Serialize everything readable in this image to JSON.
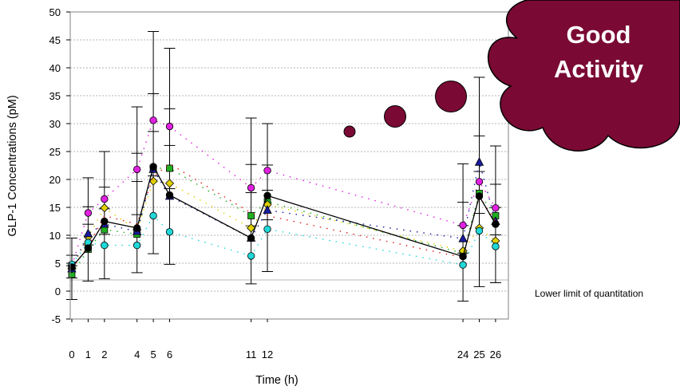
{
  "chart_data": {
    "type": "line",
    "xlabel": "Time (h)",
    "ylabel": "GLP-1 Concentrations (pM)",
    "ylim": [
      -5,
      50
    ],
    "y_ticks": [
      -5,
      0,
      5,
      10,
      15,
      20,
      25,
      30,
      35,
      40,
      45,
      50
    ],
    "x_ticks": [
      0,
      1,
      2,
      4,
      5,
      6,
      11,
      12,
      24,
      25,
      26
    ],
    "grid": "horizontal dotted",
    "reference_line": {
      "label": "Lower limit of quantitation",
      "value": 2
    },
    "callout": {
      "line1": "Good",
      "line2": "Activity",
      "color": "#7a0a34"
    },
    "error_bars": true,
    "series": [
      {
        "color": "#000000",
        "marker": "circle",
        "line": "solid",
        "values": [
          [
            0,
            4.3
          ],
          [
            1,
            7.7
          ],
          [
            2,
            12.5
          ],
          [
            4,
            11.3
          ],
          [
            5,
            22.3
          ],
          [
            6,
            17.2
          ],
          [
            11,
            9.5
          ],
          [
            12,
            17.1
          ],
          [
            24,
            6.2
          ],
          [
            25,
            17
          ],
          [
            26,
            12
          ]
        ]
      },
      {
        "color": "#e020e0",
        "marker": "circle",
        "line": "dotted",
        "values": [
          [
            0,
            4.5
          ],
          [
            1,
            14
          ],
          [
            2,
            16.5
          ],
          [
            4,
            21.8
          ],
          [
            5,
            30.6
          ],
          [
            6,
            29.5
          ],
          [
            11,
            18.5
          ],
          [
            12,
            21.6
          ],
          [
            24,
            11.8
          ],
          [
            25,
            19.6
          ],
          [
            26,
            14.9
          ]
        ]
      },
      {
        "color": "#20b020",
        "marker": "square",
        "line": "dotted",
        "values": [
          [
            0,
            3
          ],
          [
            1,
            7.5
          ],
          [
            2,
            11
          ],
          [
            4,
            10.2
          ],
          [
            5,
            22
          ],
          [
            6,
            22
          ],
          [
            11,
            13.5
          ],
          [
            12,
            16
          ],
          [
            24,
            6.8
          ],
          [
            25,
            17.5
          ],
          [
            26,
            13.5
          ]
        ]
      },
      {
        "color": "#e0d000",
        "marker": "diamond",
        "line": "dotted",
        "values": [
          [
            0,
            4
          ],
          [
            1,
            9.7
          ],
          [
            2,
            14.9
          ],
          [
            4,
            11
          ],
          [
            5,
            19.7
          ],
          [
            6,
            19.3
          ],
          [
            11,
            11.3
          ],
          [
            12,
            15.5
          ],
          [
            24,
            7.2
          ],
          [
            25,
            11.3
          ],
          [
            26,
            9
          ]
        ]
      },
      {
        "color": "#20d8d8",
        "marker": "circle",
        "line": "dotted",
        "values": [
          [
            0,
            4.8
          ],
          [
            1,
            8.7
          ],
          [
            2,
            8.2
          ],
          [
            4,
            8.2
          ],
          [
            5,
            13.5
          ],
          [
            6,
            10.6
          ],
          [
            11,
            6.3
          ],
          [
            12,
            11.1
          ],
          [
            24,
            4.7
          ],
          [
            25,
            10.8
          ],
          [
            26,
            8
          ]
        ]
      },
      {
        "color": "#1a1aa0",
        "marker": "triangle",
        "line": "dotted",
        "values": [
          [
            0,
            4
          ],
          [
            1,
            10.3
          ],
          [
            2,
            12
          ],
          [
            4,
            10.7
          ],
          [
            5,
            21.8
          ],
          [
            6,
            17
          ],
          [
            11,
            9.5
          ],
          [
            12,
            14.5
          ],
          [
            24,
            9.4
          ],
          [
            25,
            23.1
          ],
          [
            26,
            12.5
          ]
        ]
      },
      {
        "color": "#e02020",
        "marker": "none",
        "line": "dotted",
        "values": [
          [
            0,
            4
          ],
          [
            1,
            8
          ],
          [
            2,
            13.5
          ],
          [
            4,
            12
          ],
          [
            5,
            20.5
          ],
          [
            6,
            22.8
          ],
          [
            11,
            14
          ],
          [
            12,
            13.5
          ],
          [
            24,
            6
          ],
          [
            25,
            17
          ],
          [
            26,
            12.5
          ]
        ]
      }
    ],
    "error_bar_ranges": [
      [
        0,
        -1.5,
        9.5
      ],
      [
        1,
        1.8,
        20.3
      ],
      [
        2,
        2.2,
        25
      ],
      [
        4,
        3.3,
        33
      ],
      [
        5,
        6.7,
        46.5
      ],
      [
        6,
        4.8,
        43.5
      ],
      [
        11,
        1.3,
        31
      ],
      [
        12,
        3.5,
        30
      ],
      [
        24,
        -1.8,
        22.8
      ],
      [
        25,
        0.8,
        38.3
      ],
      [
        26,
        1.5,
        26
      ]
    ]
  }
}
